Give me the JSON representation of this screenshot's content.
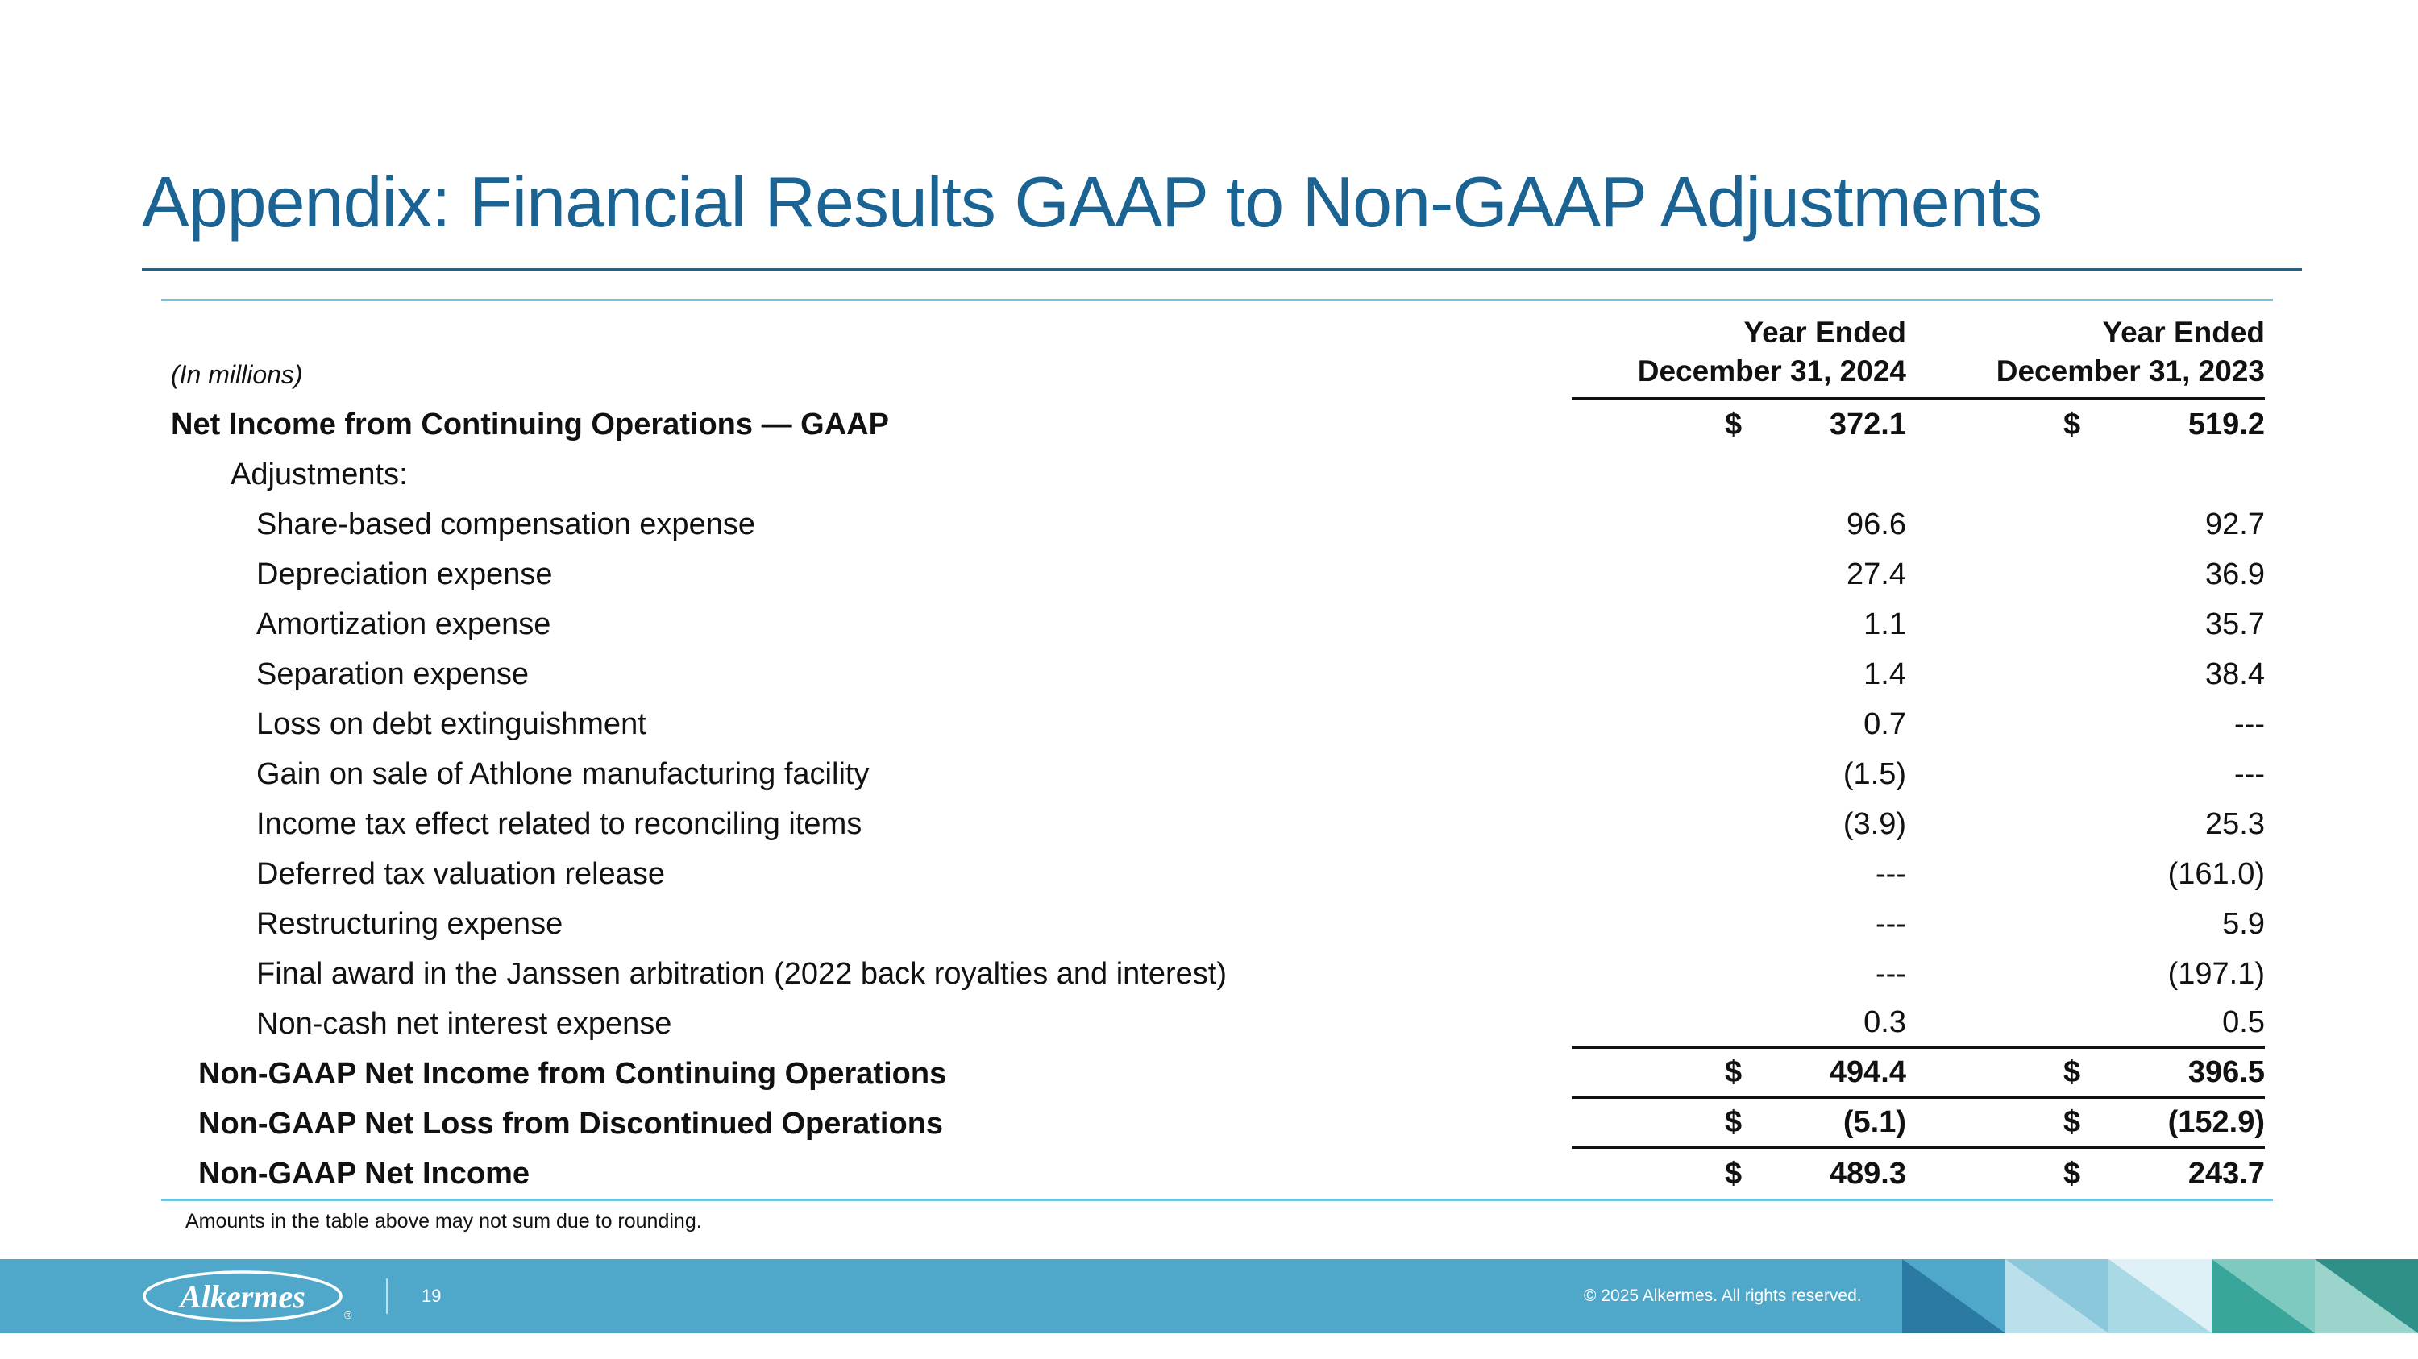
{
  "title": "Appendix: Financial Results GAAP to Non-GAAP Adjustments",
  "table": {
    "units_label": "(In millions)",
    "columns": [
      {
        "period": "Year Ended",
        "date": "December 31, 2024"
      },
      {
        "period": "Year Ended",
        "date": "December 31, 2023"
      }
    ],
    "rows": [
      {
        "label": "Net Income from Continuing Operations — GAAP",
        "bold": true,
        "indent": 0,
        "dollar": true,
        "values": [
          "372.1",
          "519.2"
        ]
      },
      {
        "label": "Adjustments:",
        "bold": false,
        "indent": 2,
        "dollar": false,
        "values": [
          "",
          ""
        ]
      },
      {
        "label": "Share-based compensation expense",
        "bold": false,
        "indent": 3,
        "dollar": false,
        "values": [
          "96.6",
          "92.7"
        ]
      },
      {
        "label": "Depreciation expense",
        "bold": false,
        "indent": 3,
        "dollar": false,
        "values": [
          "27.4",
          "36.9"
        ]
      },
      {
        "label": "Amortization expense",
        "bold": false,
        "indent": 3,
        "dollar": false,
        "values": [
          "1.1",
          "35.7"
        ]
      },
      {
        "label": "Separation expense",
        "bold": false,
        "indent": 3,
        "dollar": false,
        "values": [
          "1.4",
          "38.4"
        ]
      },
      {
        "label": "Loss on debt extinguishment",
        "bold": false,
        "indent": 3,
        "dollar": false,
        "values": [
          "0.7",
          "---"
        ]
      },
      {
        "label": "Gain on sale of Athlone manufacturing facility",
        "bold": false,
        "indent": 3,
        "dollar": false,
        "values": [
          "(1.5)",
          "---"
        ]
      },
      {
        "label": "Income tax effect related to reconciling items",
        "bold": false,
        "indent": 3,
        "dollar": false,
        "values": [
          "(3.9)",
          "25.3"
        ]
      },
      {
        "label": "Deferred tax valuation release",
        "bold": false,
        "indent": 3,
        "dollar": false,
        "values": [
          "---",
          "(161.0)"
        ]
      },
      {
        "label": "Restructuring expense",
        "bold": false,
        "indent": 3,
        "dollar": false,
        "values": [
          "---",
          "5.9"
        ]
      },
      {
        "label": "Final award in the Janssen arbitration (2022 back royalties and interest)",
        "bold": false,
        "indent": 3,
        "dollar": false,
        "values": [
          "---",
          "(197.1)"
        ]
      },
      {
        "label": "Non-cash net interest expense",
        "bold": false,
        "indent": 3,
        "dollar": false,
        "values": [
          "0.3",
          "0.5"
        ],
        "rule_below": true
      },
      {
        "label": "Non-GAAP Net Income from Continuing Operations",
        "bold": true,
        "indent": 1,
        "dollar": true,
        "values": [
          "494.4",
          "396.5"
        ],
        "rule_below": true
      },
      {
        "label": "Non-GAAP Net Loss from Discontinued Operations",
        "bold": true,
        "indent": 1,
        "dollar": true,
        "values": [
          "(5.1)",
          "(152.9)"
        ],
        "rule_below": true
      },
      {
        "label": "Non-GAAP Net Income",
        "bold": true,
        "indent": 1,
        "dollar": true,
        "values": [
          "489.3",
          "243.7"
        ]
      }
    ]
  },
  "footnote": "Amounts in the table above may not sum due to rounding.",
  "footer": {
    "logo": "Alkermes",
    "logo_reg": "®",
    "page_number": "19",
    "copyright": "© 2025 Alkermes. All rights reserved."
  },
  "colors": {
    "title": "#1A6393",
    "rule_light": "#6FC4E4",
    "footer_bar": "#4FA7CA",
    "decor_squares": [
      {
        "base": "#4FA7CA",
        "tri": "#2B7AA3",
        "dir": "bl"
      },
      {
        "base": "#BCDFEC",
        "tri": "#8CC8DC",
        "dir": "tr"
      },
      {
        "base": "#DFF0F6",
        "tri": "#A9D9E4",
        "dir": "bl"
      },
      {
        "base": "#3AA69B",
        "tri": "#7FCAC0",
        "dir": "tr"
      },
      {
        "base": "#2F9089",
        "tri": "#9AD4CB",
        "dir": "bl"
      }
    ]
  }
}
